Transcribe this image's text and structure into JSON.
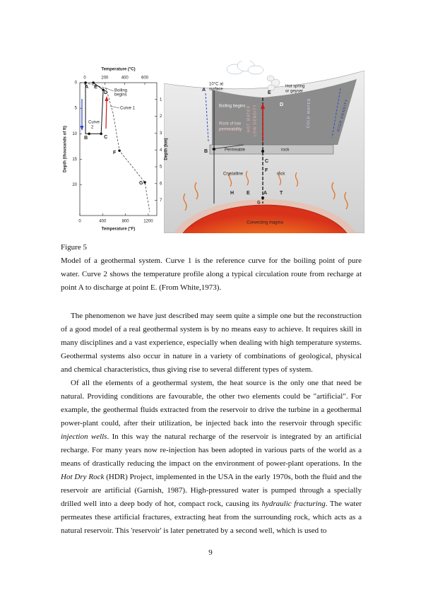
{
  "figure": {
    "left_chart": {
      "type": "line",
      "title": "Temperature (°C)",
      "x2label": "Temperature (°F)",
      "ylabel": "Depth (thousands of ft)",
      "y2label": "Depth (km)",
      "xlim": [
        -50,
        720
      ],
      "xticks": [
        0,
        200,
        400,
        600
      ],
      "x2lim": [
        0,
        1350
      ],
      "x2ticks": [
        0,
        400,
        800,
        1200
      ],
      "ylim": [
        0,
        26
      ],
      "yticks": [
        0,
        5,
        10,
        15,
        20
      ],
      "y2lim": [
        0,
        7.9
      ],
      "y2ticks": [
        1,
        2,
        3,
        4,
        5,
        6,
        7
      ],
      "series": [
        {
          "style": "dashed",
          "color": "#444444",
          "x": [
            0,
            212,
            282,
            346,
            600,
            649
          ],
          "y": [
            0,
            1.1,
            5.9,
            13.3,
            19.5,
            25.3
          ]
        },
        {
          "style": "solid",
          "color": "#111111",
          "x": [
            7,
            7,
            43,
            163,
            184,
            85
          ],
          "y": [
            0,
            10,
            10,
            10,
            1.4,
            0
          ]
        }
      ],
      "points": [
        {
          "label": "A",
          "x": 7,
          "y": 0
        },
        {
          "label": "E",
          "x": 85,
          "y": 0
        },
        {
          "label": "D",
          "x": 184,
          "y": 1.4
        },
        {
          "label": "B",
          "x": 43,
          "y": 10
        },
        {
          "label": "C",
          "x": 163,
          "y": 10
        },
        {
          "label": "F",
          "x": 346,
          "y": 13.3
        },
        {
          "label": "G",
          "x": 600,
          "y": 19.5
        }
      ],
      "annotations": [
        "Boiling",
        "begins",
        "Curve 1",
        "Curve",
        "2"
      ]
    },
    "diagram": {
      "labels": [
        "A",
        "10°C at",
        "surface",
        "E",
        "Hot spring",
        "or geyser",
        "Boiling begins",
        "D",
        "Rock of low",
        "permeability",
        "HOT WATER",
        "LOW DENSITY",
        "COLD WATER",
        "HIGH DENSITY",
        "B",
        "Permeable",
        "rock",
        "C",
        "F",
        "Crystalline",
        "rock",
        "H",
        "E",
        "A",
        "T",
        "G",
        "Convecting magma"
      ]
    }
  },
  "caption": {
    "title": "Figure 5",
    "text": "Model of a geothermal system. Curve 1 is the reference curve for the boiling point of pure water. Curve 2 shows the temperature profile along a typical circulation route from recharge at point A to discharge at point E. (From White,1973)."
  },
  "body": [
    {
      "segments": [
        {
          "text": "The phenomenon we have just described may seem quite a simple one but the reconstruction of a good model of a real geothermal system is by no means easy to achieve. It requires skill in many disciplines and a vast experience, especially when dealing with high temperature systems. Geothermal systems also occur in nature in a variety of combinations of geological, physical and chemical characteristics, thus giving rise to several different types of system."
        }
      ]
    },
    {
      "segments": [
        {
          "text": "Of all the elements of a geothermal system, the heat source is the only one that need be natural. Providing conditions are favourable, the other two elements could be \"artificial\". For example, the geothermal fluids extracted from the reservoir to drive the turbine in a geothermal power-plant could, after their utilization, be injected back into the reservoir through specific "
        },
        {
          "text": "injection wells",
          "italic": true
        },
        {
          "text": ". In this way the natural recharge of the reservoir is integrated by an artificial recharge. For many years now re-injection has been adopted in various parts of the world as a means of drastically reducing the impact on the environment of power-plant operations. In the "
        },
        {
          "text": "Hot Dry Rock",
          "italic": true
        },
        {
          "text": " (HDR) Project, implemented in the USA in the early 1970s, both the fluid and the reservoir are artificial (Garnish, 1987). High-pressured water is pumped through a specially drilled well into a deep body of hot, compact rock, causing its "
        },
        {
          "text": "hydraulic fracturing",
          "italic": true
        },
        {
          "text": ". The water permeates these artificial fractures, extracting heat from the surrounding rock, which acts as a natural reservoir. This 'reservoir' is later penetrated by a second well, which is used to"
        }
      ]
    }
  ],
  "page_number": 9
}
